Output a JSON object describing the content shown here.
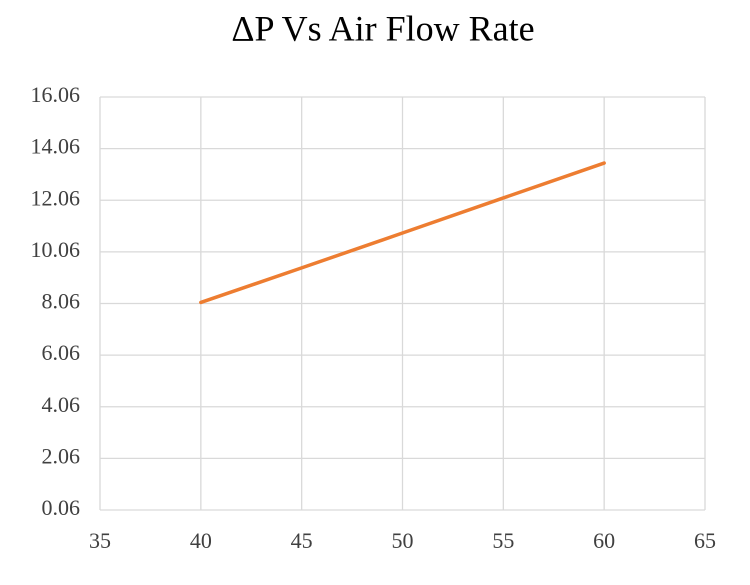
{
  "chart_data": {
    "type": "line",
    "title": "ΔP Vs Air Flow  Rate",
    "x": [
      40,
      45,
      50,
      55,
      60
    ],
    "series": [
      {
        "name": "ΔP",
        "color": "#ed7d31",
        "values": [
          8.1,
          9.44,
          10.79,
          12.15,
          13.5
        ]
      }
    ],
    "xlim": [
      35,
      65
    ],
    "xticks": [
      35,
      40,
      45,
      50,
      55,
      60,
      65
    ],
    "ylim": [
      0.06,
      16.06
    ],
    "yticks": [
      0.06,
      2.06,
      4.06,
      6.06,
      8.06,
      10.06,
      12.06,
      14.06,
      16.06
    ],
    "grid": true,
    "legend": false
  }
}
